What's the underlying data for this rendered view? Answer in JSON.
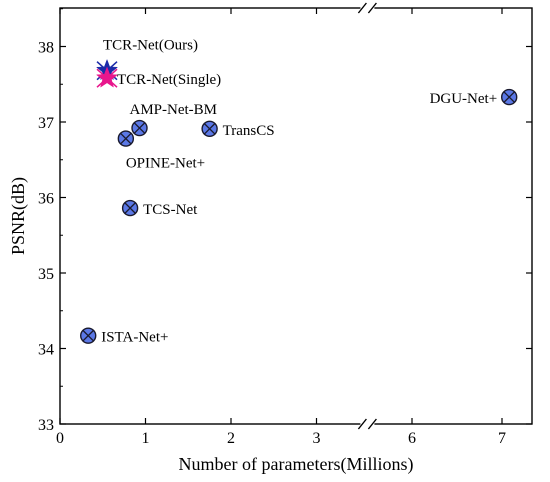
{
  "chart_data": {
    "type": "scatter",
    "xlabel": "Number of parameters(Millions)",
    "ylabel": "PSNR(dB)",
    "x_ticks": [
      {
        "label": "0",
        "value": 0
      },
      {
        "label": "1",
        "value": 1
      },
      {
        "label": "2",
        "value": 2
      },
      {
        "label": "3",
        "value": 3
      },
      {
        "label": "6",
        "value": 6
      },
      {
        "label": "7",
        "value": 7
      }
    ],
    "y_ticks": [
      "33",
      "34",
      "35",
      "36",
      "37",
      "38"
    ],
    "ylim": [
      33,
      38.5
    ],
    "x_axis_break": {
      "before": 3.6,
      "after": 5.5
    },
    "grid": false,
    "series": [
      {
        "name": "TCR-Net(Ours)",
        "marker": "star",
        "color": "#1a2aa8",
        "label_color": "#1a2aa8",
        "points": [
          {
            "x": 0.55,
            "y": 37.68
          }
        ]
      },
      {
        "name": "TCR-Net(Single)",
        "marker": "star",
        "color": "#e8168c",
        "label_color": "#e8168c",
        "points": [
          {
            "x": 0.55,
            "y": 37.58
          }
        ]
      },
      {
        "name": "AMP-Net-BM",
        "marker": "circle-x",
        "color": "#5b78e6",
        "label_color": "#000000",
        "points": [
          {
            "x": 0.93,
            "y": 36.92
          }
        ]
      },
      {
        "name": "OPINE-Net+",
        "marker": "circle-x",
        "color": "#5b78e6",
        "label_color": "#000000",
        "points": [
          {
            "x": 0.77,
            "y": 36.78
          }
        ]
      },
      {
        "name": "TransCS",
        "marker": "circle-x",
        "color": "#5b78e6",
        "label_color": "#000000",
        "points": [
          {
            "x": 1.75,
            "y": 36.91
          }
        ]
      },
      {
        "name": "TCS-Net",
        "marker": "circle-x",
        "color": "#5b78e6",
        "label_color": "#000000",
        "points": [
          {
            "x": 0.82,
            "y": 35.86
          }
        ]
      },
      {
        "name": "ISTA-Net+",
        "marker": "circle-x",
        "color": "#5b78e6",
        "label_color": "#000000",
        "points": [
          {
            "x": 0.33,
            "y": 34.17
          }
        ]
      },
      {
        "name": "DGU-Net+",
        "marker": "circle-x",
        "color": "#5b78e6",
        "label_color": "#000000",
        "points": [
          {
            "x": 7.08,
            "y": 37.33
          }
        ]
      }
    ]
  }
}
